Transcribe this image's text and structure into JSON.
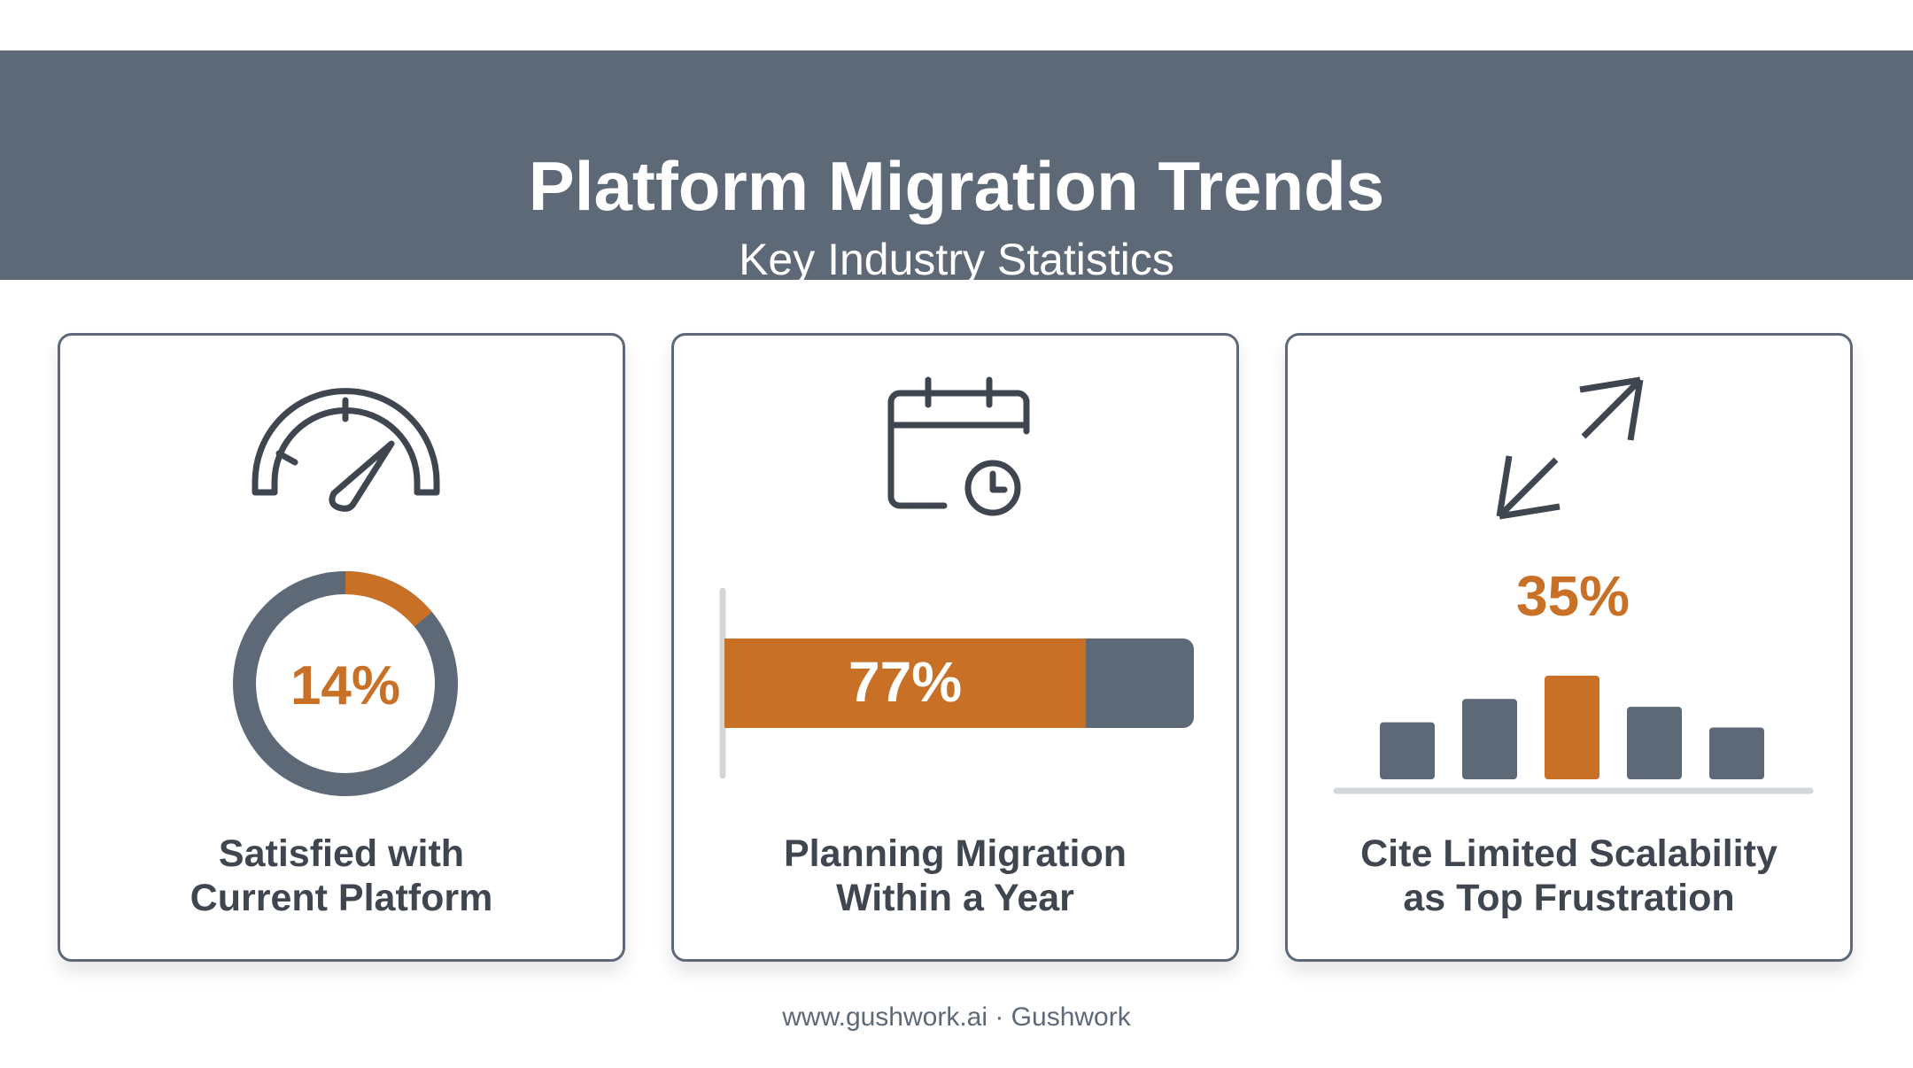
{
  "header": {
    "title": "Platform Migration Trends",
    "subtitle": "Key Industry Statistics"
  },
  "colors": {
    "header_bg": "#5e6978",
    "accent": "#c97027",
    "neutral": "#5e6978",
    "baseline": "#d3d6da",
    "text": "#3f4650"
  },
  "cards": [
    {
      "icon": "speedometer-icon",
      "value_label": "14%",
      "label_line1": "Satisfied with",
      "label_line2": "Current Platform"
    },
    {
      "icon": "calendar-clock-icon",
      "value_label": "77%",
      "label_line1": "Planning Migration",
      "label_line2": "Within a Year"
    },
    {
      "icon": "expand-arrows-icon",
      "value_label": "35%",
      "label_line1": "Cite Limited Scalability",
      "label_line2": "as Top Frustration"
    }
  ],
  "chart_data": [
    {
      "type": "pie",
      "title": "Satisfied with Current Platform",
      "values": [
        14,
        86
      ],
      "data_label": "14%"
    },
    {
      "type": "bar",
      "title": "Planning Migration Within a Year",
      "values": [
        77
      ],
      "data_label": "77%"
    },
    {
      "type": "bar",
      "title": "Cite Limited Scalability as Top Frustration",
      "values": [
        1.1,
        1.55,
        2.0,
        1.4,
        1.0
      ],
      "highlight_index": 2,
      "data_label": "35%"
    }
  ],
  "footer": {
    "text": "www.gushwork.ai · Gushwork"
  }
}
